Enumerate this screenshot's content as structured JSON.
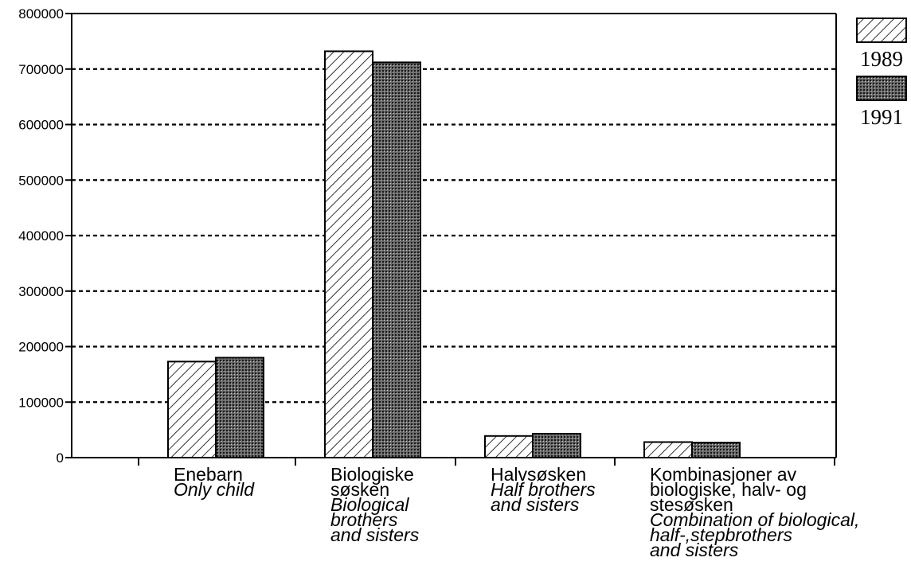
{
  "chart_data": {
    "type": "bar",
    "title": "",
    "xlabel": "",
    "ylabel": "",
    "ylim": [
      0,
      800000
    ],
    "yticks": [
      0,
      100000,
      200000,
      300000,
      400000,
      500000,
      600000,
      700000,
      800000
    ],
    "grid": "horizontal dashed",
    "legend_position": "top-right, outside plot",
    "categories": [
      {
        "no": [
          "Enebarn"
        ],
        "en": [
          "Only child"
        ]
      },
      {
        "no": [
          "Biologiske",
          "søsken"
        ],
        "en": [
          "Biological",
          "brothers",
          "and sisters"
        ]
      },
      {
        "no": [
          "Halvsøsken"
        ],
        "en": [
          "Half brothers",
          "and sisters"
        ]
      },
      {
        "no": [
          "Kombinasjoner av",
          "biologiske, halv- og",
          "stesøsken"
        ],
        "en": [
          "Combination of biological,",
          "half-,stepbrothers",
          "and sisters"
        ]
      }
    ],
    "series": [
      {
        "name": "1989",
        "pattern": "hatched",
        "values": [
          173000,
          732000,
          39000,
          28000
        ]
      },
      {
        "name": "1991",
        "pattern": "dotted",
        "values": [
          180000,
          712000,
          43000,
          27000
        ]
      }
    ]
  }
}
